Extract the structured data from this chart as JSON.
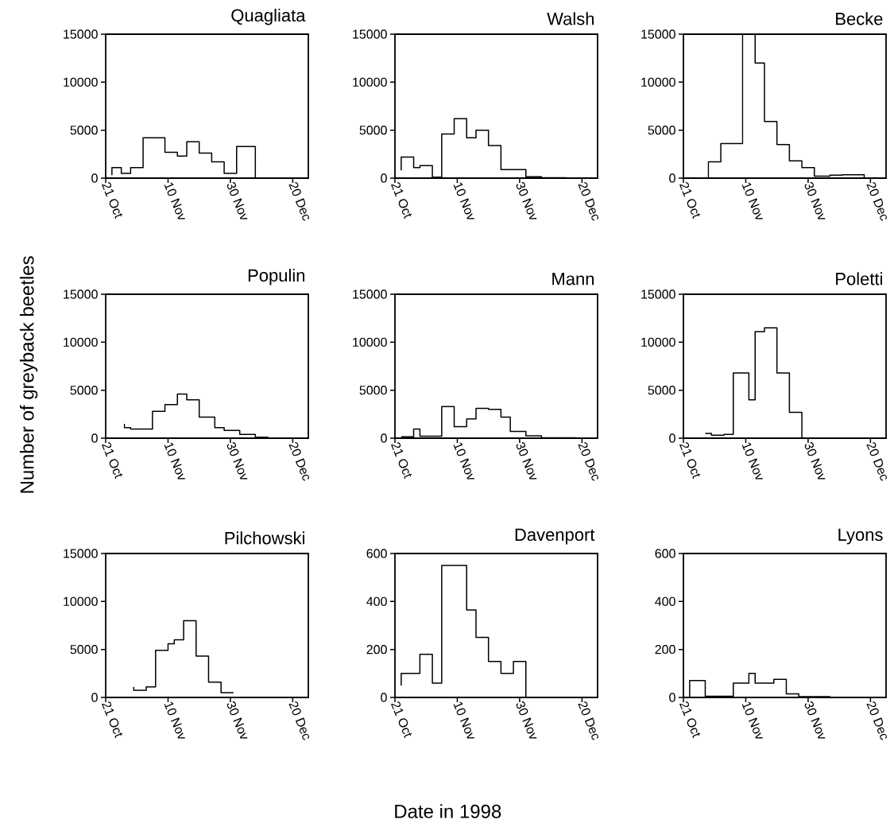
{
  "chart_data": [
    {
      "type": "step",
      "title": "Quagliata",
      "color": "#000000",
      "x": [
        "1998-10-23",
        "1998-10-23",
        "1998-10-26",
        "1998-10-29",
        "1998-11-02",
        "1998-11-09",
        "1998-11-13",
        "1998-11-16",
        "1998-11-20",
        "1998-11-24",
        "1998-11-28",
        "1998-12-02",
        "1998-12-08",
        "1998-12-11"
      ],
      "values": [
        300,
        1100,
        500,
        1100,
        4200,
        2700,
        2300,
        3800,
        2600,
        1700,
        500,
        3300,
        0,
        0
      ],
      "xlim": [
        "1998-10-21",
        "1998-12-25"
      ],
      "xticks": [
        {
          "value": "1998-10-21",
          "label": "21 Oct"
        },
        {
          "value": "1998-11-10",
          "label": "10 Nov"
        },
        {
          "value": "1998-11-30",
          "label": "30 Nov"
        },
        {
          "value": "1998-12-20",
          "label": "20 Dec"
        }
      ],
      "ylim": [
        0,
        15000
      ],
      "yticks": [
        0,
        5000,
        10000,
        15000
      ]
    },
    {
      "type": "step",
      "title": "Walsh",
      "color": "#000000",
      "x": [
        "1998-10-23",
        "1998-10-23",
        "1998-10-27",
        "1998-10-29",
        "1998-11-02",
        "1998-11-05",
        "1998-11-09",
        "1998-11-13",
        "1998-11-16",
        "1998-11-20",
        "1998-11-24",
        "1998-12-02",
        "1998-12-07",
        "1998-12-15",
        "1998-12-21"
      ],
      "values": [
        800,
        2200,
        1100,
        1300,
        100,
        4600,
        6200,
        4200,
        5000,
        3400,
        900,
        150,
        50,
        0,
        0
      ],
      "xlim": [
        "1998-10-21",
        "1998-12-25"
      ],
      "xticks": [
        {
          "value": "1998-10-21",
          "label": "21 Oct"
        },
        {
          "value": "1998-11-10",
          "label": "10 Nov"
        },
        {
          "value": "1998-11-30",
          "label": "30 Nov"
        },
        {
          "value": "1998-12-20",
          "label": "20 Dec"
        }
      ],
      "ylim": [
        0,
        15000
      ],
      "yticks": [
        0,
        5000,
        10000,
        15000
      ]
    },
    {
      "type": "step",
      "title": "Becke",
      "color": "#000000",
      "x": [
        "1998-10-29",
        "1998-10-29",
        "1998-11-02",
        "1998-11-09",
        "1998-11-13",
        "1998-11-16",
        "1998-11-20",
        "1998-11-24",
        "1998-11-28",
        "1998-12-02",
        "1998-12-07",
        "1998-12-11",
        "1998-12-18",
        "1998-12-24"
      ],
      "values": [
        0,
        1700,
        3600,
        null,
        12000,
        5900,
        3500,
        1800,
        1100,
        200,
        300,
        350,
        0,
        0
      ],
      "xlim": [
        "1998-10-21",
        "1998-12-25"
      ],
      "xticks": [
        {
          "value": "1998-10-21",
          "label": "21 Oct"
        },
        {
          "value": "1998-11-10",
          "label": "10 Nov"
        },
        {
          "value": "1998-11-30",
          "label": "30 Nov"
        },
        {
          "value": "1998-12-20",
          "label": "20 Dec"
        }
      ],
      "ylim": [
        0,
        15000
      ],
      "yticks": [
        0,
        5000,
        10000,
        15000
      ]
    },
    {
      "type": "step",
      "title": "Populin",
      "ylabel": "Number of greyback beetles",
      "color": "#000000",
      "x": [
        "1998-10-27",
        "1998-10-27",
        "1998-10-29",
        "1998-11-05",
        "1998-11-09",
        "1998-11-13",
        "1998-11-16",
        "1998-11-20",
        "1998-11-25",
        "1998-11-28",
        "1998-12-03",
        "1998-12-08",
        "1998-12-12",
        "1998-12-22"
      ],
      "values": [
        1500,
        1100,
        950,
        2800,
        3500,
        4600,
        4000,
        2200,
        1100,
        800,
        400,
        100,
        0,
        0
      ],
      "xlim": [
        "1998-10-21",
        "1998-12-25"
      ],
      "xticks": [
        {
          "value": "1998-10-21",
          "label": "21 Oct"
        },
        {
          "value": "1998-11-10",
          "label": "10 Nov"
        },
        {
          "value": "1998-11-30",
          "label": "30 Nov"
        },
        {
          "value": "1998-12-20",
          "label": "20 Dec"
        }
      ],
      "ylim": [
        0,
        15000
      ],
      "yticks": [
        0,
        5000,
        10000,
        15000
      ]
    },
    {
      "type": "step",
      "title": "Mann",
      "color": "#000000",
      "x": [
        "1998-10-23",
        "1998-10-27",
        "1998-10-29",
        "1998-11-05",
        "1998-11-09",
        "1998-11-13",
        "1998-11-16",
        "1998-11-20",
        "1998-11-24",
        "1998-11-27",
        "1998-12-02",
        "1998-12-07",
        "1998-12-18"
      ],
      "values": [
        150,
        950,
        200,
        3300,
        1200,
        2000,
        3100,
        3000,
        2200,
        700,
        250,
        30,
        0
      ],
      "xlim": [
        "1998-10-21",
        "1998-12-25"
      ],
      "xticks": [
        {
          "value": "1998-10-21",
          "label": "21 Oct"
        },
        {
          "value": "1998-11-10",
          "label": "10 Nov"
        },
        {
          "value": "1998-11-30",
          "label": "30 Nov"
        },
        {
          "value": "1998-12-20",
          "label": "20 Dec"
        }
      ],
      "ylim": [
        0,
        15000
      ],
      "yticks": [
        0,
        5000,
        10000,
        15000
      ]
    },
    {
      "type": "step",
      "title": "Poletti",
      "color": "#000000",
      "x": [
        "1998-10-28",
        "1998-10-30",
        "1998-11-03",
        "1998-11-06",
        "1998-11-11",
        "1998-11-13",
        "1998-11-16",
        "1998-11-20",
        "1998-11-24",
        "1998-11-28"
      ],
      "values": [
        500,
        300,
        400,
        6800,
        4000,
        11100,
        11500,
        6800,
        2700,
        0
      ],
      "xlim": [
        "1998-10-21",
        "1998-12-25"
      ],
      "xticks": [
        {
          "value": "1998-10-21",
          "label": "21 Oct"
        },
        {
          "value": "1998-11-10",
          "label": "10 Nov"
        },
        {
          "value": "1998-11-30",
          "label": "30 Nov"
        },
        {
          "value": "1998-12-20",
          "label": "20 Dec"
        }
      ],
      "ylim": [
        0,
        15000
      ],
      "yticks": [
        0,
        5000,
        10000,
        15000
      ]
    },
    {
      "type": "step",
      "title": "Pilchowski",
      "color": "#000000",
      "x": [
        "1998-10-30",
        "1998-10-30",
        "1998-11-03",
        "1998-11-06",
        "1998-11-10",
        "1998-11-12",
        "1998-11-15",
        "1998-11-19",
        "1998-11-23",
        "1998-11-27",
        "1998-12-01"
      ],
      "values": [
        1100,
        750,
        1100,
        4900,
        5600,
        6000,
        8000,
        4300,
        1600,
        500,
        500
      ],
      "xlim": [
        "1998-10-21",
        "1998-12-25"
      ],
      "xticks": [
        {
          "value": "1998-10-21",
          "label": "21 Oct"
        },
        {
          "value": "1998-11-10",
          "label": "10 Nov"
        },
        {
          "value": "1998-11-30",
          "label": "30 Nov"
        },
        {
          "value": "1998-12-20",
          "label": "20 Dec"
        }
      ],
      "ylim": [
        0,
        15000
      ],
      "yticks": [
        0,
        5000,
        10000,
        15000
      ]
    },
    {
      "type": "step",
      "title": "Davenport",
      "xlabel": "Date in 1998",
      "color": "#000000",
      "x": [
        "1998-10-23",
        "1998-10-23",
        "1998-10-29",
        "1998-11-02",
        "1998-11-05",
        "1998-11-13",
        "1998-11-16",
        "1998-11-20",
        "1998-11-24",
        "1998-11-28",
        "1998-12-02",
        "1998-12-07"
      ],
      "values": [
        50,
        100,
        180,
        60,
        550,
        365,
        250,
        150,
        100,
        150,
        0,
        0
      ],
      "xlim": [
        "1998-10-21",
        "1998-12-25"
      ],
      "xticks": [
        {
          "value": "1998-10-21",
          "label": "21 Oct"
        },
        {
          "value": "1998-11-10",
          "label": "10 Nov"
        },
        {
          "value": "1998-11-30",
          "label": "30 Nov"
        },
        {
          "value": "1998-12-20",
          "label": "20 Dec"
        }
      ],
      "ylim": [
        0,
        600
      ],
      "yticks": [
        0,
        200,
        400,
        600
      ]
    },
    {
      "type": "step",
      "title": "Lyons",
      "color": "#000000",
      "x": [
        "1998-10-23",
        "1998-10-23",
        "1998-10-28",
        "1998-11-06",
        "1998-11-11",
        "1998-11-13",
        "1998-11-19",
        "1998-11-23",
        "1998-11-27",
        "1998-12-07"
      ],
      "values": [
        0,
        70,
        5,
        60,
        100,
        60,
        75,
        15,
        3,
        0
      ],
      "xlim": [
        "1998-10-21",
        "1998-12-25"
      ],
      "xticks": [
        {
          "value": "1998-10-21",
          "label": "21 Oct"
        },
        {
          "value": "1998-11-10",
          "label": "10 Nov"
        },
        {
          "value": "1998-11-30",
          "label": "30 Nov"
        },
        {
          "value": "1998-12-20",
          "label": "20 Dec"
        }
      ],
      "ylim": [
        0,
        600
      ],
      "yticks": [
        0,
        200,
        400,
        600
      ]
    }
  ]
}
